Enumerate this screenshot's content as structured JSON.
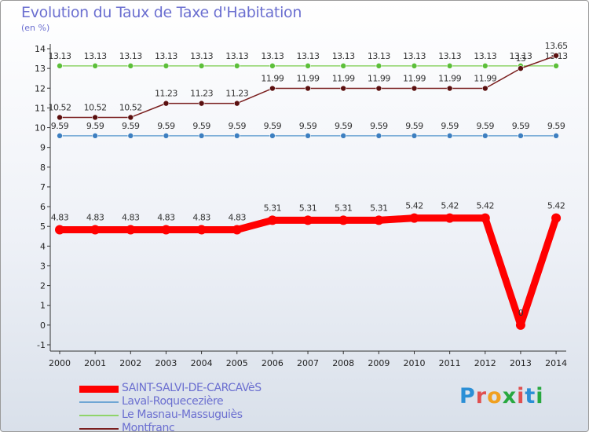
{
  "title": "Evolution du Taux de Taxe d'Habitation",
  "subtitle": "(en %)",
  "logo": {
    "text": "Proxiti",
    "colors": [
      "#2b8fd6",
      "#e05050",
      "#f0a020",
      "#28a840",
      "#e05050",
      "#2b8fd6",
      "#28a840"
    ]
  },
  "chart_data": {
    "type": "line",
    "title": "Evolution du Taux de Taxe d'Habitation",
    "ylabel": "(en %)",
    "xlabel": "",
    "ylim": [
      -1,
      14
    ],
    "yticks": [
      "-1",
      "0",
      "1",
      "2",
      "3",
      "4",
      "5",
      "6",
      "7",
      "8",
      "9",
      "10",
      "11",
      "12",
      "13",
      "14"
    ],
    "categories": [
      "2000",
      "2001",
      "2002",
      "2003",
      "2004",
      "2005",
      "2006",
      "2007",
      "2008",
      "2009",
      "2010",
      "2011",
      "2012",
      "2013",
      "2014"
    ],
    "series": [
      {
        "name": "SAINT-SALVI-DE-CARCAVèS",
        "color": "#ff0000",
        "marker": "#ff0000",
        "values": [
          4.83,
          4.83,
          4.83,
          4.83,
          4.83,
          4.83,
          5.31,
          5.31,
          5.31,
          5.31,
          5.42,
          5.42,
          5.42,
          0,
          5.42
        ],
        "labels": [
          "4.83",
          "4.83",
          "4.83",
          "4.83",
          "4.83",
          "4.83",
          "5.31",
          "5.31",
          "5.31",
          "5.31",
          "5.42",
          "5.42",
          "5.42",
          "0",
          "5.42"
        ]
      },
      {
        "name": "Laval-Roquecezière",
        "color": "#6fa6d4",
        "marker": "#3d7fc0",
        "values": [
          9.59,
          9.59,
          9.59,
          9.59,
          9.59,
          9.59,
          9.59,
          9.59,
          9.59,
          9.59,
          9.59,
          9.59,
          9.59,
          9.59,
          9.59
        ],
        "labels": [
          "9.59",
          "9.59",
          "9.59",
          "9.59",
          "9.59",
          "9.59",
          "9.59",
          "9.59",
          "9.59",
          "9.59",
          "9.59",
          "9.59",
          "9.59",
          "9.59",
          "9.59"
        ]
      },
      {
        "name": "Le Masnau-Massuguiès",
        "color": "#8fd46a",
        "marker": "#5cbf3a",
        "values": [
          13.13,
          13.13,
          13.13,
          13.13,
          13.13,
          13.13,
          13.13,
          13.13,
          13.13,
          13.13,
          13.13,
          13.13,
          13.13,
          13.13,
          13.13
        ],
        "labels": [
          "13.13",
          "13.13",
          "13.13",
          "13.13",
          "13.13",
          "13.13",
          "13.13",
          "13.13",
          "13.13",
          "13.13",
          "13.13",
          "13.13",
          "13.13",
          "13.13",
          "13.13"
        ]
      },
      {
        "name": "Montfranc",
        "color": "#7a1f1f",
        "marker": "#5a1010",
        "values": [
          10.52,
          10.52,
          10.52,
          11.23,
          11.23,
          11.23,
          11.99,
          11.99,
          11.99,
          11.99,
          11.99,
          11.99,
          11.99,
          13,
          13.65
        ],
        "labels": [
          "10.52",
          "10.52",
          "10.52",
          "11.23",
          "11.23",
          "11.23",
          "11.99",
          "11.99",
          "11.99",
          "11.99",
          "11.99",
          "11.99",
          "11.99",
          "13",
          "13.65"
        ]
      }
    ],
    "legend": "bottom-left",
    "grid": false
  }
}
